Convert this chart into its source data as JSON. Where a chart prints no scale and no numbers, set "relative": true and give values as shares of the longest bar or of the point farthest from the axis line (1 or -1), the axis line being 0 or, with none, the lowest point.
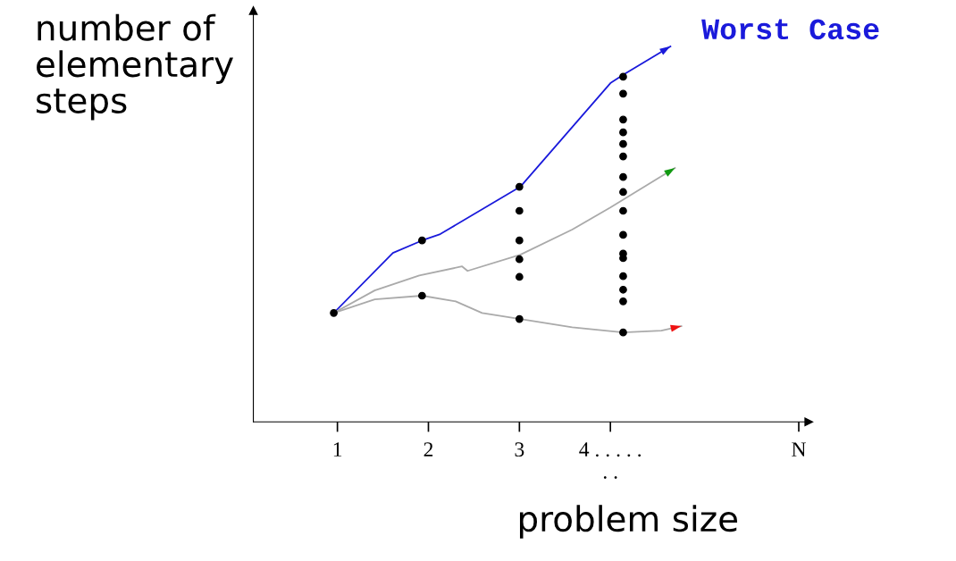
{
  "chart_data": {
    "type": "line",
    "relative": true,
    "xlabel": "problem size",
    "ylabel": "number of elementary steps",
    "xlim": [
      0.076,
      6.18
    ],
    "xticks": [
      1,
      2,
      3,
      {
        "value": 4,
        "label": "4 . . . . .\n. ."
      },
      {
        "value": 6.07,
        "label": "N"
      }
    ],
    "grid": false,
    "legend": false,
    "marker": "none",
    "annotations": [
      {
        "text": "Worst Case",
        "x": 4.66,
        "y": 1.0
      }
    ],
    "series": [
      {
        "color": "#1a1adb",
        "x": [
          0.96,
          1.61,
          1.93,
          2.13,
          3.01,
          4.0,
          4.14,
          4.66
        ],
        "values": [
          0.29,
          0.45,
          0.483,
          0.5,
          0.626,
          0.902,
          0.924,
          1.0
        ]
      },
      {
        "color": "#aaaaaa",
        "x": [
          0.96,
          1.41,
          1.9,
          2.37,
          2.43,
          3.01,
          3.58,
          4.0,
          4.71
        ],
        "values": [
          0.29,
          0.35,
          0.39,
          0.414,
          0.402,
          0.445,
          0.512,
          0.571,
          0.676
        ]
      },
      {
        "color": "#aaaaaa",
        "x": [
          0.96,
          1.41,
          1.93,
          2.3,
          2.59,
          3.01,
          3.58,
          4.14,
          4.56,
          4.78
        ],
        "values": [
          0.29,
          0.326,
          0.336,
          0.321,
          0.29,
          0.274,
          0.252,
          0.238,
          0.243,
          0.255
        ]
      },
      {
        "type": "scatter",
        "color": "#000000",
        "x": [
          0.96,
          1.93,
          1.93,
          3.0,
          3.0,
          3.0,
          3.0,
          3.0,
          3.0,
          4.14,
          4.14,
          4.14,
          4.14,
          4.14,
          4.14,
          4.14,
          4.14,
          4.14,
          4.14,
          4.14,
          4.14,
          4.14,
          4.14,
          4.14,
          4.14
        ],
        "values": [
          0.29,
          0.483,
          0.336,
          0.626,
          0.562,
          0.483,
          0.433,
          0.386,
          0.274,
          0.919,
          0.874,
          0.805,
          0.771,
          0.74,
          0.707,
          0.652,
          0.612,
          0.562,
          0.498,
          0.448,
          0.436,
          0.388,
          0.352,
          0.321,
          0.238
        ]
      }
    ]
  }
}
